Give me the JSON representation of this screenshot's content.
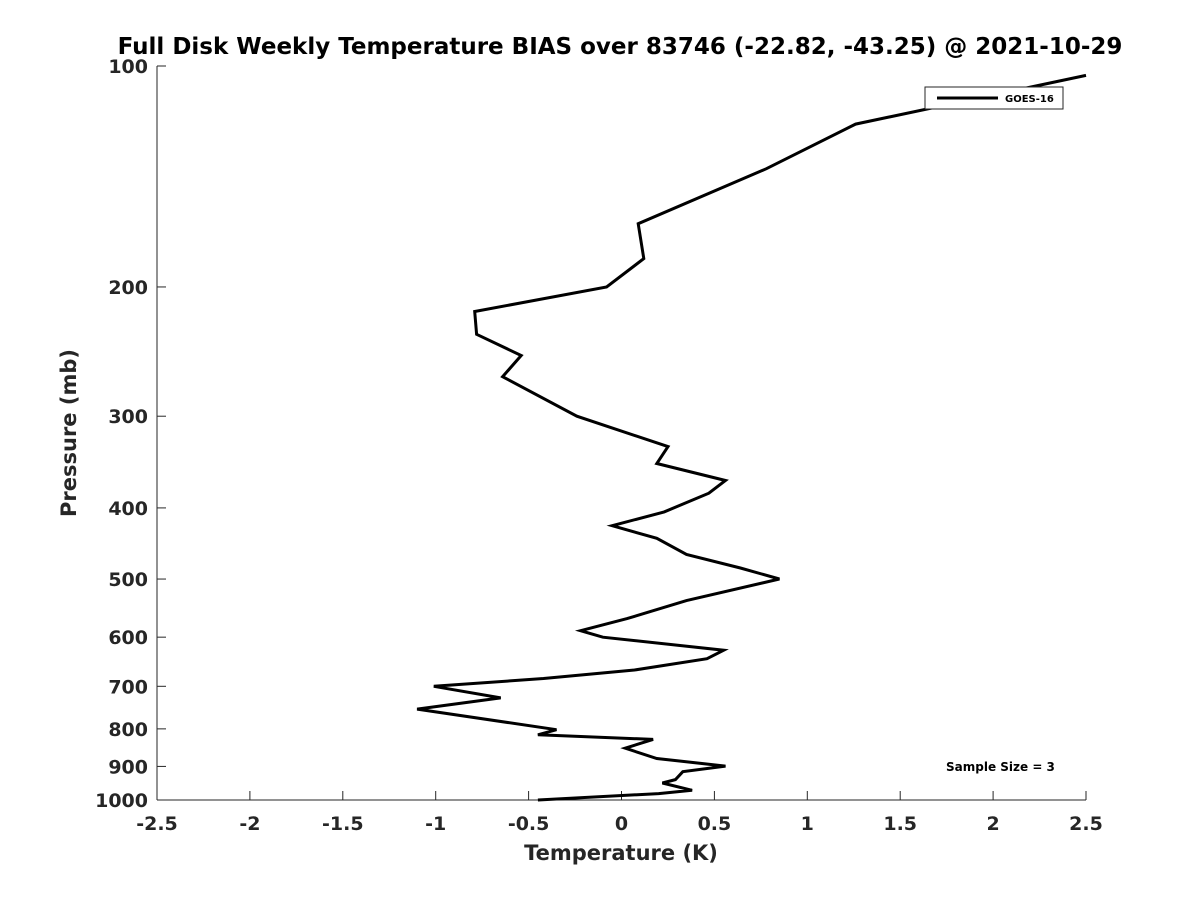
{
  "chart_data": {
    "type": "line",
    "title": "Full Disk Weekly Temperature BIAS over 83746 (-22.82, -43.25) @ 2021-10-29",
    "xlabel": "Temperature (K)",
    "ylabel": "Pressure (mb)",
    "xlim": [
      -2.5,
      2.5
    ],
    "ylim": [
      100,
      1000
    ],
    "y_scale": "log",
    "y_reversed": true,
    "x_ticks": [
      -2.5,
      -2,
      -1.5,
      -1,
      -0.5,
      0,
      0.5,
      1,
      1.5,
      2,
      2.5
    ],
    "x_tick_labels": [
      "-2.5",
      "-2",
      "-1.5",
      "-1",
      "-0.5",
      "0",
      "0.5",
      "1",
      "1.5",
      "2",
      "2.5"
    ],
    "y_ticks": [
      100,
      200,
      300,
      400,
      500,
      600,
      700,
      800,
      900,
      1000
    ],
    "y_tick_labels": [
      "100",
      "200",
      "300",
      "400",
      "500",
      "600",
      "700",
      "800",
      "900",
      "1000"
    ],
    "grid": false,
    "legend_position": "top-right",
    "annotation": "Sample Size = 3",
    "series": [
      {
        "name": "GOES-16",
        "color": "#000000",
        "points": [
          {
            "x": 2.5,
            "y": 103
          },
          {
            "x": 1.26,
            "y": 120
          },
          {
            "x": 0.78,
            "y": 138
          },
          {
            "x": 0.09,
            "y": 164
          },
          {
            "x": 0.12,
            "y": 183
          },
          {
            "x": -0.08,
            "y": 200
          },
          {
            "x": -0.79,
            "y": 216
          },
          {
            "x": -0.78,
            "y": 232
          },
          {
            "x": -0.54,
            "y": 248
          },
          {
            "x": -0.64,
            "y": 265
          },
          {
            "x": -0.24,
            "y": 300
          },
          {
            "x": 0.25,
            "y": 330
          },
          {
            "x": 0.19,
            "y": 348
          },
          {
            "x": 0.56,
            "y": 367
          },
          {
            "x": 0.47,
            "y": 382
          },
          {
            "x": 0.23,
            "y": 405
          },
          {
            "x": -0.05,
            "y": 423
          },
          {
            "x": 0.19,
            "y": 440
          },
          {
            "x": 0.35,
            "y": 463
          },
          {
            "x": 0.64,
            "y": 483
          },
          {
            "x": 0.85,
            "y": 500
          },
          {
            "x": 0.35,
            "y": 535
          },
          {
            "x": 0.03,
            "y": 566
          },
          {
            "x": -0.22,
            "y": 588
          },
          {
            "x": -0.1,
            "y": 600
          },
          {
            "x": 0.55,
            "y": 625
          },
          {
            "x": 0.46,
            "y": 642
          },
          {
            "x": 0.07,
            "y": 665
          },
          {
            "x": -0.42,
            "y": 683
          },
          {
            "x": -1.01,
            "y": 700
          },
          {
            "x": -0.65,
            "y": 726
          },
          {
            "x": -1.1,
            "y": 752
          },
          {
            "x": -0.35,
            "y": 802
          },
          {
            "x": -0.45,
            "y": 815
          },
          {
            "x": 0.17,
            "y": 827
          },
          {
            "x": 0.02,
            "y": 850
          },
          {
            "x": 0.19,
            "y": 878
          },
          {
            "x": 0.56,
            "y": 899
          },
          {
            "x": 0.33,
            "y": 915
          },
          {
            "x": 0.29,
            "y": 938
          },
          {
            "x": 0.22,
            "y": 948
          },
          {
            "x": 0.38,
            "y": 970
          },
          {
            "x": 0.2,
            "y": 980
          },
          {
            "x": -0.45,
            "y": 1000
          }
        ]
      }
    ]
  }
}
